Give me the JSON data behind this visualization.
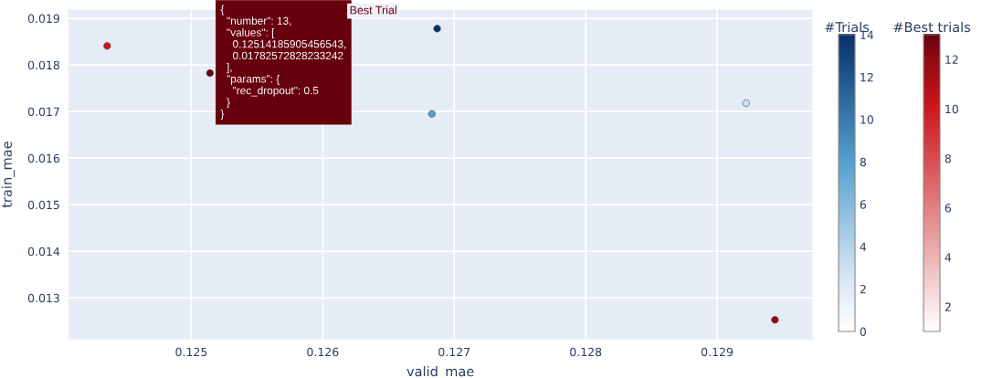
{
  "chart_data": [
    {
      "type": "scatter",
      "xlabel": "valid_mae",
      "ylabel": "train_mae",
      "xlim": [
        0.12406,
        0.12973
      ],
      "xticks": [
        0.125,
        0.126,
        0.127,
        0.128,
        0.129
      ],
      "ylim": [
        0.0121,
        0.0192
      ],
      "yticks": [
        0.013,
        0.014,
        0.015,
        0.016,
        0.017,
        0.018,
        0.019
      ],
      "grid": true,
      "marker": "circle",
      "clabel": "#Trials",
      "clim": [
        0,
        14
      ],
      "cticks": [
        0,
        2,
        4,
        6,
        8,
        10,
        12,
        14
      ],
      "series": [
        {
          "colors": [
            "#08306b",
            "#539fcf",
            "#cde0f1"
          ],
          "x": [
            0.12687,
            0.12683,
            0.12922
          ],
          "values": [
            0.01878,
            0.01695,
            0.01718
          ],
          "cvalues": [
            14,
            8,
            3
          ]
        }
      ]
    },
    {
      "type": "scatter",
      "xlim": [
        0.12406,
        0.12973
      ],
      "xticks": [
        0.125,
        0.126,
        0.127,
        0.128,
        0.129
      ],
      "ylim": [
        0.0121,
        0.0192
      ],
      "yticks": [
        0.013,
        0.014,
        0.015,
        0.016,
        0.017,
        0.018,
        0.019
      ],
      "tick_labels": false,
      "marker": "circle",
      "clabel": "#Best trials",
      "clim": [
        1,
        13
      ],
      "cticks": [
        2,
        4,
        6,
        8,
        10,
        12
      ],
      "series": [
        {
          "colors": [
            "#cb181d",
            "#67000d",
            "#900a12"
          ],
          "x": [
            0.12436,
            0.12514185905456543,
            0.12944
          ],
          "values": [
            0.01841,
            0.01782572828233242,
            0.01253
          ],
          "cvalues": [
            10,
            13,
            12
          ]
        }
      ],
      "annotations": [
        "{\n  \"number\": 13,\n  \"values\": [\n    0.12514185905456543,\n    0.01782572828233242\n  ],\n  \"params\": {\n    \"rec_dropout\": 0.5\n  }\n}",
        "Best Trial"
      ]
    }
  ]
}
